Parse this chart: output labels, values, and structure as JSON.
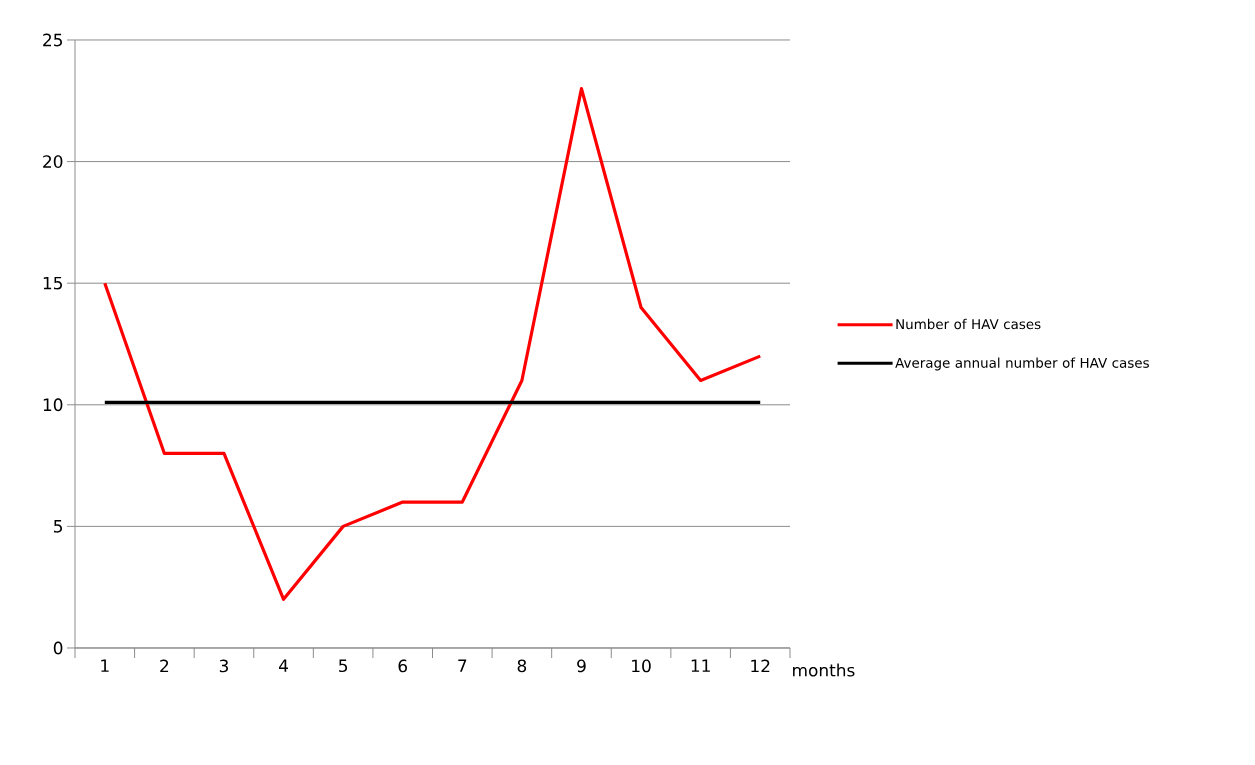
{
  "chart_data": {
    "type": "line",
    "categories": [
      "1",
      "2",
      "3",
      "4",
      "5",
      "6",
      "7",
      "8",
      "9",
      "10",
      "11",
      "12"
    ],
    "xlabel": "months",
    "series": [
      {
        "name": "Number of HAV cases",
        "color": "#ff0000",
        "values": [
          15,
          8,
          8,
          2,
          5,
          6,
          6,
          11,
          23,
          14,
          11,
          12
        ]
      },
      {
        "name": "Average annual number of HAV cases",
        "color": "#000000",
        "values": [
          10.1,
          10.1,
          10.1,
          10.1,
          10.1,
          10.1,
          10.1,
          10.1,
          10.1,
          10.1,
          10.1,
          10.1
        ]
      }
    ],
    "ylim": [
      0,
      25
    ],
    "yticks": [
      0,
      5,
      10,
      15,
      20,
      25
    ],
    "grid": "y",
    "legend": "right",
    "marker": "none",
    "line_style": "solid"
  }
}
